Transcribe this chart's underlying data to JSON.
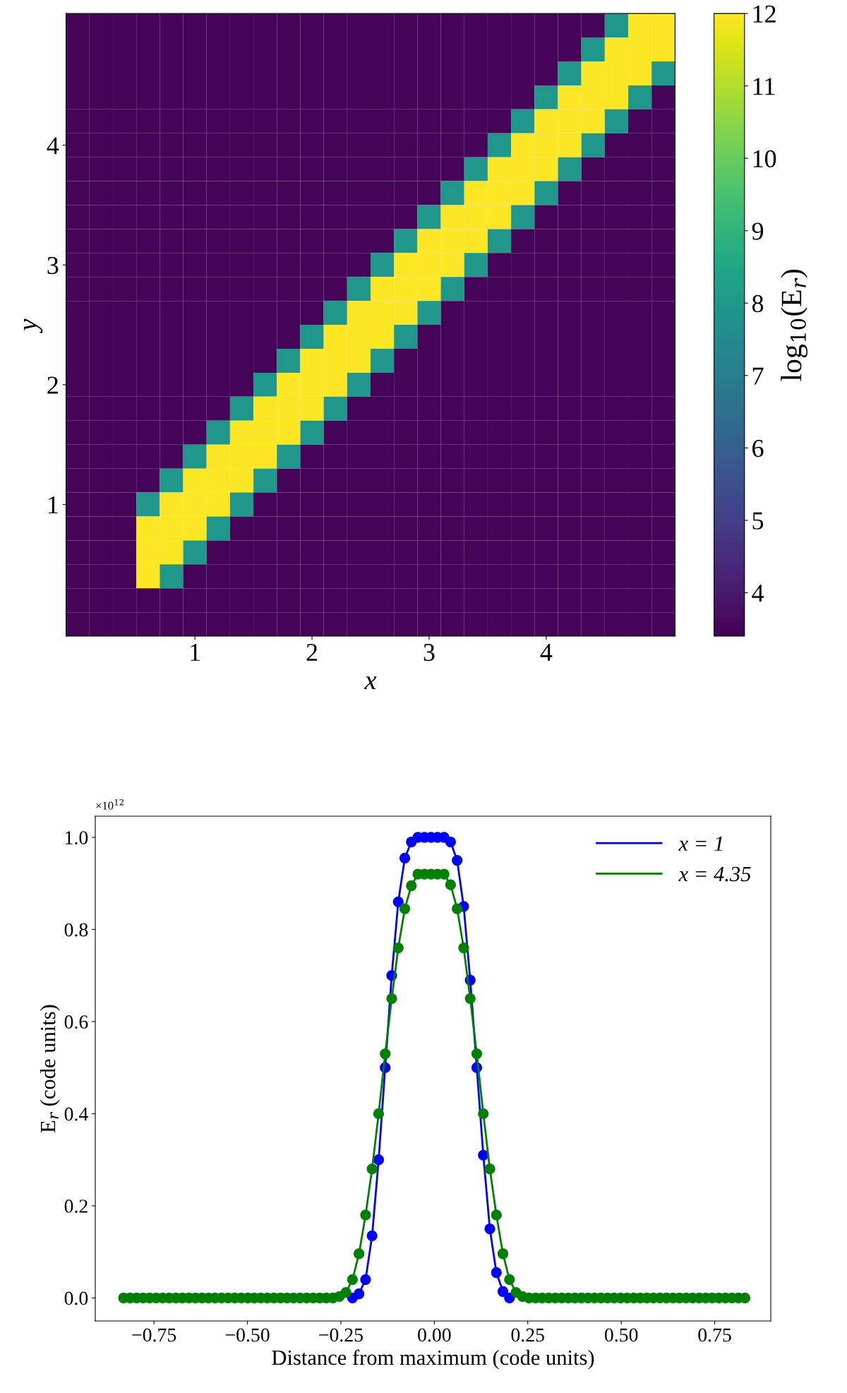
{
  "chart_data": [
    {
      "type": "heatmap",
      "xlabel": "x",
      "ylabel": "y",
      "clabel": "log$_{10}$(E$_{r}$)",
      "categories": [
        null,
        null,
        null,
        null,
        null,
        "1",
        null,
        null,
        null,
        null,
        "2",
        null,
        null,
        null,
        null,
        "3",
        null,
        null,
        null,
        null,
        "4",
        null,
        null,
        null,
        null,
        null
      ],
      "y_categories": [
        null,
        null,
        null,
        null,
        null,
        "4",
        null,
        null,
        null,
        null,
        "3",
        null,
        null,
        null,
        null,
        "2",
        null,
        null,
        null,
        null,
        "1",
        null,
        null,
        null,
        null,
        null
      ],
      "clim": [
        3.4,
        12
      ],
      "cticks": [
        4,
        5,
        6,
        7,
        8,
        9,
        10,
        11,
        12
      ],
      "cells": [
        [
          3.5,
          3.5,
          3.5,
          3.5,
          3.5,
          3.5,
          3.5,
          3.5,
          3.5,
          3.5,
          3.5,
          3.5,
          3.5,
          3.5,
          3.5,
          3.5,
          3.5,
          3.5,
          3.5,
          3.5,
          3.5,
          3.5,
          3.5,
          8,
          12,
          12
        ],
        [
          3.5,
          3.5,
          3.5,
          3.5,
          3.5,
          3.5,
          3.5,
          3.5,
          3.5,
          3.5,
          3.5,
          3.5,
          3.5,
          3.5,
          3.5,
          3.5,
          3.5,
          3.5,
          3.5,
          3.5,
          3.5,
          3.5,
          8,
          12,
          12,
          12
        ],
        [
          3.5,
          3.5,
          3.5,
          3.5,
          3.5,
          3.5,
          3.5,
          3.5,
          3.5,
          3.5,
          3.5,
          3.5,
          3.5,
          3.5,
          3.5,
          3.5,
          3.5,
          3.5,
          3.5,
          3.5,
          3.5,
          8,
          12,
          12,
          12,
          8
        ],
        [
          3.5,
          3.5,
          3.5,
          3.5,
          3.5,
          3.5,
          3.5,
          3.5,
          3.5,
          3.5,
          3.5,
          3.5,
          3.5,
          3.5,
          3.5,
          3.5,
          3.5,
          3.5,
          3.5,
          3.5,
          8,
          12,
          12,
          12,
          8,
          3.5
        ],
        [
          3.5,
          3.5,
          3.5,
          3.5,
          3.5,
          3.5,
          3.5,
          3.5,
          3.5,
          3.5,
          3.5,
          3.5,
          3.5,
          3.5,
          3.5,
          3.5,
          3.5,
          3.5,
          3.5,
          8,
          12,
          12,
          12,
          8,
          3.5,
          3.5
        ],
        [
          3.5,
          3.5,
          3.5,
          3.5,
          3.5,
          3.5,
          3.5,
          3.5,
          3.5,
          3.5,
          3.5,
          3.5,
          3.5,
          3.5,
          3.5,
          3.5,
          3.5,
          3.5,
          8,
          12,
          12,
          12,
          8,
          3.5,
          3.5,
          3.5
        ],
        [
          3.5,
          3.5,
          3.5,
          3.5,
          3.5,
          3.5,
          3.5,
          3.5,
          3.5,
          3.5,
          3.5,
          3.5,
          3.5,
          3.5,
          3.5,
          3.5,
          3.5,
          8,
          12,
          12,
          12,
          8,
          3.5,
          3.5,
          3.5,
          3.5
        ],
        [
          3.5,
          3.5,
          3.5,
          3.5,
          3.5,
          3.5,
          3.5,
          3.5,
          3.5,
          3.5,
          3.5,
          3.5,
          3.5,
          3.5,
          3.5,
          3.5,
          8,
          12,
          12,
          12,
          8,
          3.5,
          3.5,
          3.5,
          3.5,
          3.5
        ],
        [
          3.5,
          3.5,
          3.5,
          3.5,
          3.5,
          3.5,
          3.5,
          3.5,
          3.5,
          3.5,
          3.5,
          3.5,
          3.5,
          3.5,
          3.5,
          8,
          12,
          12,
          12,
          8,
          3.5,
          3.5,
          3.5,
          3.5,
          3.5,
          3.5
        ],
        [
          3.5,
          3.5,
          3.5,
          3.5,
          3.5,
          3.5,
          3.5,
          3.5,
          3.5,
          3.5,
          3.5,
          3.5,
          3.5,
          3.5,
          8,
          12,
          12,
          12,
          8,
          3.5,
          3.5,
          3.5,
          3.5,
          3.5,
          3.5,
          3.5
        ],
        [
          3.5,
          3.5,
          3.5,
          3.5,
          3.5,
          3.5,
          3.5,
          3.5,
          3.5,
          3.5,
          3.5,
          3.5,
          3.5,
          8,
          12,
          12,
          12,
          8,
          3.5,
          3.5,
          3.5,
          3.5,
          3.5,
          3.5,
          3.5,
          3.5
        ],
        [
          3.5,
          3.5,
          3.5,
          3.5,
          3.5,
          3.5,
          3.5,
          3.5,
          3.5,
          3.5,
          3.5,
          3.5,
          8,
          12,
          12,
          12,
          8,
          3.5,
          3.5,
          3.5,
          3.5,
          3.5,
          3.5,
          3.5,
          3.5,
          3.5
        ],
        [
          3.5,
          3.5,
          3.5,
          3.5,
          3.5,
          3.5,
          3.5,
          3.5,
          3.5,
          3.5,
          3.5,
          8,
          12,
          12,
          12,
          8,
          3.5,
          3.5,
          3.5,
          3.5,
          3.5,
          3.5,
          3.5,
          3.5,
          3.5,
          3.5
        ],
        [
          3.5,
          3.5,
          3.5,
          3.5,
          3.5,
          3.5,
          3.5,
          3.5,
          3.5,
          3.5,
          8,
          12,
          12,
          12,
          8,
          3.5,
          3.5,
          3.5,
          3.5,
          3.5,
          3.5,
          3.5,
          3.5,
          3.5,
          3.5,
          3.5
        ],
        [
          3.5,
          3.5,
          3.5,
          3.5,
          3.5,
          3.5,
          3.5,
          3.5,
          3.5,
          8,
          12,
          12,
          12,
          8,
          3.5,
          3.5,
          3.5,
          3.5,
          3.5,
          3.5,
          3.5,
          3.5,
          3.5,
          3.5,
          3.5,
          3.5
        ],
        [
          3.5,
          3.5,
          3.5,
          3.5,
          3.5,
          3.5,
          3.5,
          3.5,
          8,
          12,
          12,
          12,
          8,
          3.5,
          3.5,
          3.5,
          3.5,
          3.5,
          3.5,
          3.5,
          3.5,
          3.5,
          3.5,
          3.5,
          3.5,
          3.5
        ],
        [
          3.5,
          3.5,
          3.5,
          3.5,
          3.5,
          3.5,
          3.5,
          8,
          12,
          12,
          12,
          8,
          3.5,
          3.5,
          3.5,
          3.5,
          3.5,
          3.5,
          3.5,
          3.5,
          3.5,
          3.5,
          3.5,
          3.5,
          3.5,
          3.5
        ],
        [
          3.5,
          3.5,
          3.5,
          3.5,
          3.5,
          3.5,
          8,
          12,
          12,
          12,
          8,
          3.5,
          3.5,
          3.5,
          3.5,
          3.5,
          3.5,
          3.5,
          3.5,
          3.5,
          3.5,
          3.5,
          3.5,
          3.5,
          3.5,
          3.5
        ],
        [
          3.5,
          3.5,
          3.5,
          3.5,
          3.5,
          8,
          12,
          12,
          12,
          8,
          3.5,
          3.5,
          3.5,
          3.5,
          3.5,
          3.5,
          3.5,
          3.5,
          3.5,
          3.5,
          3.5,
          3.5,
          3.5,
          3.5,
          3.5,
          3.5
        ],
        [
          3.5,
          3.5,
          3.5,
          3.5,
          8,
          12,
          12,
          12,
          8,
          3.5,
          3.5,
          3.5,
          3.5,
          3.5,
          3.5,
          3.5,
          3.5,
          3.5,
          3.5,
          3.5,
          3.5,
          3.5,
          3.5,
          3.5,
          3.5,
          3.5
        ],
        [
          3.5,
          3.5,
          3.5,
          8,
          12,
          12,
          12,
          8,
          3.5,
          3.5,
          3.5,
          3.5,
          3.5,
          3.5,
          3.5,
          3.5,
          3.5,
          3.5,
          3.5,
          3.5,
          3.5,
          3.5,
          3.5,
          3.5,
          3.5,
          3.5
        ],
        [
          3.5,
          3.5,
          3.5,
          12,
          12,
          12,
          8,
          3.5,
          3.5,
          3.5,
          3.5,
          3.5,
          3.5,
          3.5,
          3.5,
          3.5,
          3.5,
          3.5,
          3.5,
          3.5,
          3.5,
          3.5,
          3.5,
          3.5,
          3.5,
          3.5
        ],
        [
          3.5,
          3.5,
          3.5,
          12,
          12,
          8,
          3.5,
          3.5,
          3.5,
          3.5,
          3.5,
          3.5,
          3.5,
          3.5,
          3.5,
          3.5,
          3.5,
          3.5,
          3.5,
          3.5,
          3.5,
          3.5,
          3.5,
          3.5,
          3.5,
          3.5
        ],
        [
          3.5,
          3.5,
          3.5,
          12,
          8,
          3.5,
          3.5,
          3.5,
          3.5,
          3.5,
          3.5,
          3.5,
          3.5,
          3.5,
          3.5,
          3.5,
          3.5,
          3.5,
          3.5,
          3.5,
          3.5,
          3.5,
          3.5,
          3.5,
          3.5,
          3.5
        ],
        [
          3.5,
          3.5,
          3.5,
          3.5,
          3.5,
          3.5,
          3.5,
          3.5,
          3.5,
          3.5,
          3.5,
          3.5,
          3.5,
          3.5,
          3.5,
          3.5,
          3.5,
          3.5,
          3.5,
          3.5,
          3.5,
          3.5,
          3.5,
          3.5,
          3.5,
          3.5
        ],
        [
          3.5,
          3.5,
          3.5,
          3.5,
          3.5,
          3.5,
          3.5,
          3.5,
          3.5,
          3.5,
          3.5,
          3.5,
          3.5,
          3.5,
          3.5,
          3.5,
          3.5,
          3.5,
          3.5,
          3.5,
          3.5,
          3.5,
          3.5,
          3.5,
          3.5,
          3.5
        ]
      ]
    },
    {
      "type": "line",
      "xlabel": "Distance from maximum (code units)",
      "ylabel": "E$_{r}$ (code units)",
      "annotations": [
        "×10$^{12}$"
      ],
      "xlim": [
        -0.907,
        0.9
      ],
      "ylim": [
        -0.05,
        1.046
      ],
      "xticks": [
        {
          "value": -0.75,
          "label": "−0.75"
        },
        {
          "value": -0.5,
          "label": "−0.50"
        },
        {
          "value": -0.25,
          "label": "−0.25"
        },
        {
          "value": 0,
          "label": "0.00"
        },
        {
          "value": 0.25,
          "label": "0.25"
        },
        {
          "value": 0.5,
          "label": "0.50"
        },
        {
          "value": 0.75,
          "label": "0.75"
        }
      ],
      "yticks": [
        {
          "value": 0,
          "label": "0.0"
        },
        {
          "value": 0.2,
          "label": "0.2"
        },
        {
          "value": 0.4,
          "label": "0.4"
        },
        {
          "value": 0.6,
          "label": "0.6"
        },
        {
          "value": 0.8,
          "label": "0.8"
        },
        {
          "value": 1,
          "label": "1.0"
        }
      ],
      "legend": "top right",
      "marker": "circle",
      "grid": false,
      "x": [
        -0.8315,
        -0.814,
        -0.7965,
        -0.779,
        -0.7615,
        -0.744,
        -0.7265,
        -0.709,
        -0.6915,
        -0.674,
        -0.6565,
        -0.639,
        -0.6215,
        -0.604,
        -0.5865,
        -0.569,
        -0.5515,
        -0.534,
        -0.5165,
        -0.499,
        -0.4815,
        -0.464,
        -0.4465,
        -0.429,
        -0.4115,
        -0.394,
        -0.3765,
        -0.359,
        -0.3415,
        -0.324,
        -0.3065,
        -0.289,
        -0.2715,
        -0.254,
        -0.2365,
        -0.219,
        -0.2015,
        -0.184,
        -0.1665,
        -0.149,
        -0.1315,
        -0.114,
        -0.0965,
        -0.079,
        -0.0615,
        -0.044,
        -0.0265,
        -0.009,
        0.0085,
        0.026,
        0.0435,
        0.061,
        0.0785,
        0.096,
        0.1135,
        0.131,
        0.1485,
        0.166,
        0.1835,
        0.201,
        0.2185,
        0.236,
        0.2535,
        0.271,
        0.2885,
        0.306,
        0.3235,
        0.341,
        0.3585,
        0.376,
        0.3935,
        0.411,
        0.4285,
        0.446,
        0.4635,
        0.481,
        0.4985,
        0.516,
        0.5335,
        0.551,
        0.5685,
        0.586,
        0.6035,
        0.621,
        0.6385,
        0.656,
        0.6735,
        0.691,
        0.7085,
        0.726,
        0.7435,
        0.761,
        0.7785,
        0.796,
        0.8135,
        0.831
      ],
      "series": [
        {
          "name": "x = 1",
          "color": "#0000ff",
          "values": [
            null,
            null,
            null,
            null,
            null,
            null,
            null,
            null,
            null,
            null,
            null,
            null,
            null,
            null,
            null,
            null,
            null,
            null,
            null,
            null,
            null,
            null,
            null,
            null,
            null,
            null,
            null,
            null,
            null,
            null,
            null,
            null,
            null,
            null,
            null,
            0,
            0.009,
            0.04,
            0.135,
            0.3,
            0.5,
            0.7,
            0.86,
            0.955,
            0.99,
            1,
            1,
            1,
            1,
            1,
            0.99,
            0.95,
            0.85,
            0.69,
            0.5,
            0.31,
            0.15,
            0.055,
            0.014,
            0,
            null,
            null,
            null,
            null,
            null,
            null,
            null,
            null,
            null,
            null,
            null,
            null,
            null,
            null,
            null,
            null,
            null,
            null,
            null,
            null,
            null,
            null,
            null,
            null,
            null,
            null,
            null,
            null,
            null,
            null,
            null,
            null,
            null,
            null,
            null,
            null
          ]
        },
        {
          "name": "x = 4.35",
          "color": "#008000",
          "values": [
            0,
            0,
            0,
            0,
            0,
            0,
            0,
            0,
            0,
            0,
            0,
            0,
            0,
            0,
            0,
            0,
            0,
            0,
            0,
            0,
            0,
            0,
            0,
            0,
            0,
            0,
            0,
            0,
            0,
            0,
            0,
            0,
            0,
            0.003,
            0.012,
            0.04,
            0.096,
            0.18,
            0.28,
            0.4,
            0.53,
            0.65,
            0.76,
            0.845,
            0.895,
            0.92,
            0.92,
            0.92,
            0.92,
            0.92,
            0.897,
            0.845,
            0.76,
            0.65,
            0.53,
            0.4,
            0.28,
            0.18,
            0.096,
            0.04,
            0.012,
            0.003,
            0,
            0,
            0,
            0,
            0,
            0,
            0,
            0,
            0,
            0,
            0,
            0,
            0,
            0,
            0,
            0,
            0,
            0,
            0,
            0,
            0,
            0,
            0,
            0,
            0,
            0,
            0,
            0,
            0,
            0,
            0,
            0,
            0,
            0
          ]
        }
      ]
    }
  ]
}
